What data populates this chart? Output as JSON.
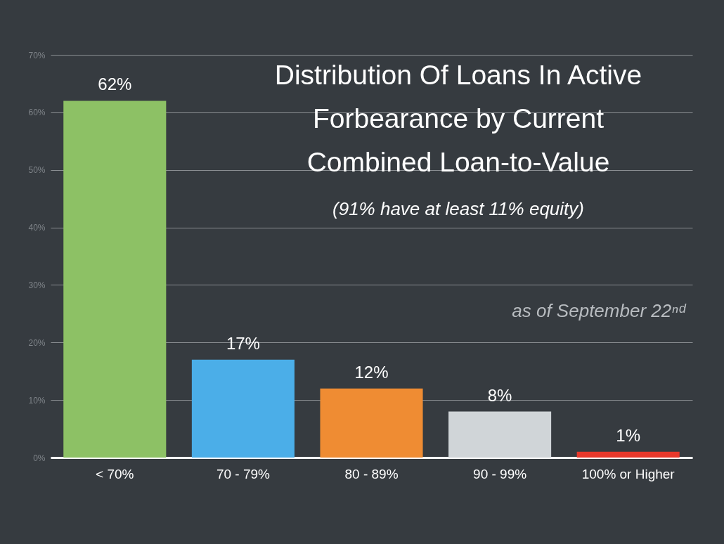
{
  "chart_data": {
    "type": "bar",
    "title": "Distribution Of Loans In Active\nForbearance by Current\nCombined Loan-to-Value",
    "subtitle": "(91% have at least 11% equity)",
    "annotations": [
      "as of September 22ⁿᵈ"
    ],
    "categories": [
      "< 70%",
      "70 - 79%",
      "80 - 89%",
      "90 - 99%",
      "100% or Higher"
    ],
    "values": [
      62,
      17,
      12,
      8,
      1
    ],
    "colors": [
      "#8dc165",
      "#4baee8",
      "#ef8c33",
      "#d0d5d8",
      "#e8382b"
    ],
    "value_labels": [
      "62%",
      "17%",
      "12%",
      "8%",
      "1%"
    ],
    "ylim": [
      0,
      70
    ],
    "yticks": [
      {
        "value": 0,
        "label": "0%"
      },
      {
        "value": 10,
        "label": "10%"
      },
      {
        "value": 20,
        "label": "20%"
      },
      {
        "value": 30,
        "label": "30%"
      },
      {
        "value": 40,
        "label": "40%"
      },
      {
        "value": 50,
        "label": "50%"
      },
      {
        "value": 60,
        "label": "60%"
      },
      {
        "value": 70,
        "label": "70%"
      }
    ],
    "grid": "y"
  }
}
